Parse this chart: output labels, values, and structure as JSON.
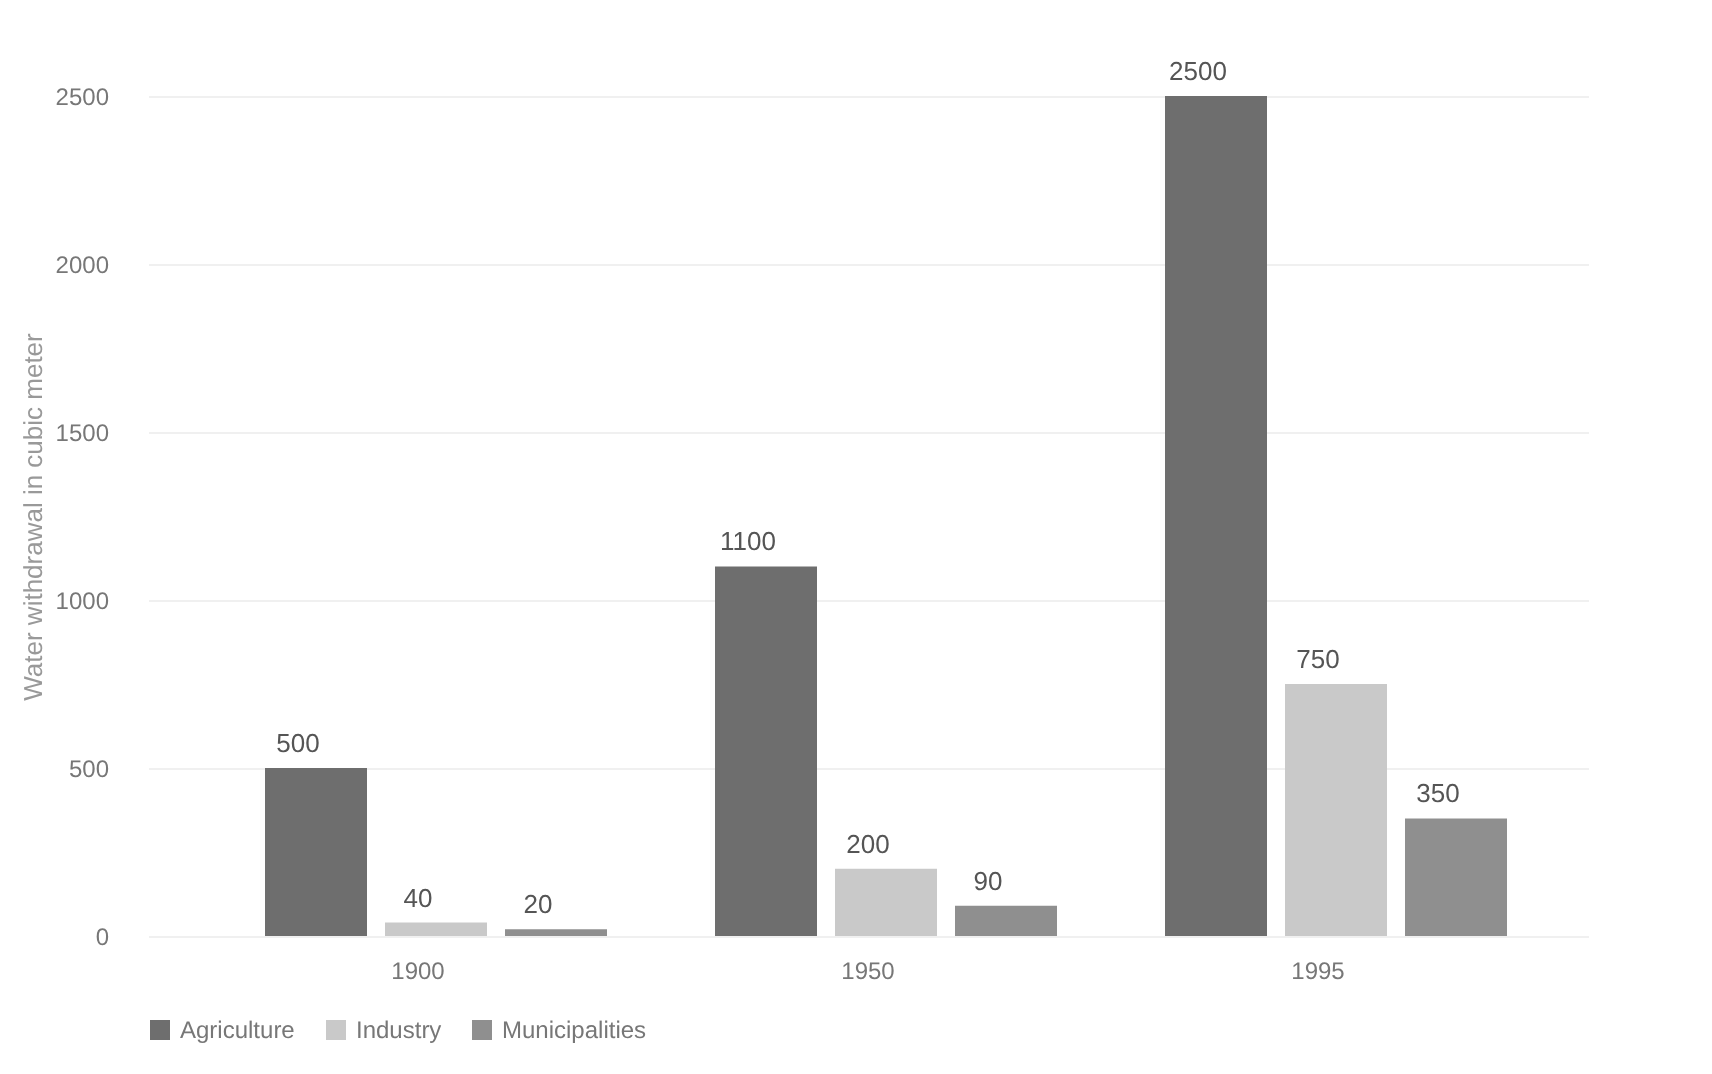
{
  "chart_data": {
    "type": "bar",
    "ylabel": "Water withdrawal in cubic meter",
    "categories": [
      "1900",
      "1950",
      "1995"
    ],
    "series": [
      {
        "name": "Agriculture",
        "color": "#6e6e6e",
        "values": [
          500,
          1100,
          2500
        ]
      },
      {
        "name": "Industry",
        "color": "#c9c9c9",
        "values": [
          40,
          200,
          750
        ]
      },
      {
        "name": "Municipalities",
        "color": "#8f8f8f",
        "values": [
          20,
          90,
          350
        ]
      }
    ],
    "ylim": [
      0,
      2500
    ],
    "yticks": [
      0,
      500,
      1000,
      1500,
      2000,
      2500
    ],
    "grid": "y",
    "legend": "bottom",
    "data_labels": true
  }
}
